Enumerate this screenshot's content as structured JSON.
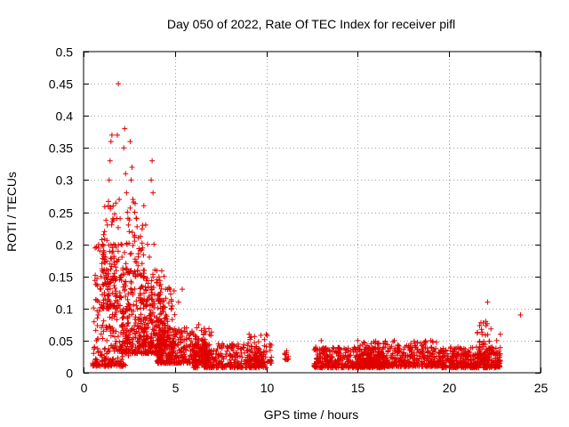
{
  "chart_data": {
    "type": "scatter",
    "title": "Day 050 of 2022, Rate Of TEC Index for receiver pifl",
    "xlabel": "GPS time / hours",
    "ylabel": "ROTI / TECUs",
    "xlim": [
      0,
      25
    ],
    "ylim": [
      0,
      0.5
    ],
    "x_ticks": [
      0,
      5,
      10,
      15,
      20,
      25
    ],
    "x_tick_labels": [
      "0",
      "5",
      "10",
      "15",
      "20",
      "25"
    ],
    "y_ticks": [
      0,
      0.05,
      0.1,
      0.15,
      0.2,
      0.25,
      0.3,
      0.35,
      0.4,
      0.45,
      0.5
    ],
    "y_tick_labels": [
      "0",
      "0.05",
      "0.1",
      "0.15",
      "0.2",
      "0.25",
      "0.3",
      "0.35",
      "0.4",
      "0.45",
      "0.5"
    ],
    "grid": true,
    "marker": "+",
    "color": "#e00000",
    "series": [
      {
        "name": "ROTI",
        "points": [
          [
            0.5,
            0.015
          ],
          [
            0.55,
            0.03
          ],
          [
            0.6,
            0.04
          ],
          [
            0.65,
            0.02
          ],
          [
            0.7,
            0.05
          ],
          [
            0.75,
            0.085
          ],
          [
            0.8,
            0.09
          ],
          [
            0.85,
            0.11
          ],
          [
            0.9,
            0.13
          ],
          [
            0.95,
            0.15
          ],
          [
            1.0,
            0.17
          ],
          [
            1.05,
            0.2
          ],
          [
            1.1,
            0.19
          ],
          [
            1.15,
            0.22
          ],
          [
            1.2,
            0.18
          ],
          [
            1.25,
            0.16
          ],
          [
            1.3,
            0.23
          ],
          [
            1.35,
            0.26
          ],
          [
            1.4,
            0.3
          ],
          [
            1.45,
            0.33
          ],
          [
            1.5,
            0.36
          ],
          [
            1.55,
            0.37
          ],
          [
            1.6,
            0.24
          ],
          [
            1.65,
            0.2
          ],
          [
            1.7,
            0.15
          ],
          [
            1.8,
            0.12
          ],
          [
            1.85,
            0.37
          ],
          [
            1.9,
            0.45
          ],
          [
            1.95,
            0.27
          ],
          [
            2.0,
            0.24
          ],
          [
            2.05,
            0.2
          ],
          [
            2.1,
            0.18
          ],
          [
            2.15,
            0.16
          ],
          [
            2.2,
            0.35
          ],
          [
            2.25,
            0.38
          ],
          [
            2.3,
            0.31
          ],
          [
            2.35,
            0.28
          ],
          [
            2.4,
            0.25
          ],
          [
            2.45,
            0.23
          ],
          [
            2.5,
            0.22
          ],
          [
            2.55,
            0.36
          ],
          [
            2.6,
            0.3
          ],
          [
            2.65,
            0.32
          ],
          [
            2.7,
            0.27
          ],
          [
            2.8,
            0.25
          ],
          [
            2.9,
            0.24
          ],
          [
            3.0,
            0.21
          ],
          [
            3.1,
            0.19
          ],
          [
            3.2,
            0.17
          ],
          [
            3.3,
            0.26
          ],
          [
            3.4,
            0.23
          ],
          [
            3.5,
            0.2
          ],
          [
            3.6,
            0.18
          ],
          [
            3.7,
            0.3
          ],
          [
            3.75,
            0.33
          ],
          [
            3.8,
            0.28
          ],
          [
            3.85,
            0.2
          ],
          [
            3.9,
            0.16
          ],
          [
            4.0,
            0.14
          ],
          [
            4.1,
            0.12
          ],
          [
            4.2,
            0.11
          ],
          [
            4.3,
            0.1
          ],
          [
            4.4,
            0.15
          ],
          [
            4.5,
            0.09
          ],
          [
            4.6,
            0.08
          ],
          [
            4.7,
            0.07
          ],
          [
            4.8,
            0.1
          ],
          [
            5.0,
            0.06
          ],
          [
            5.2,
            0.11
          ],
          [
            5.4,
            0.13
          ],
          [
            5.5,
            0.05
          ],
          [
            5.7,
            0.04
          ],
          [
            6.0,
            0.035
          ],
          [
            6.3,
            0.075
          ],
          [
            6.5,
            0.04
          ],
          [
            7.0,
            0.035
          ],
          [
            7.5,
            0.03
          ],
          [
            8.0,
            0.02
          ],
          [
            8.5,
            0.015
          ],
          [
            9.0,
            0.02
          ],
          [
            9.5,
            0.03
          ],
          [
            10.0,
            0.06
          ],
          [
            10.2,
            0.04
          ],
          [
            11.0,
            0.03
          ],
          [
            11.2,
            0.025
          ],
          [
            12.7,
            0.04
          ],
          [
            13.0,
            0.05
          ],
          [
            13.5,
            0.02
          ],
          [
            14.0,
            0.02
          ],
          [
            14.5,
            0.025
          ],
          [
            15.0,
            0.05
          ],
          [
            15.5,
            0.03
          ],
          [
            16.0,
            0.025
          ],
          [
            16.5,
            0.04
          ],
          [
            17.0,
            0.05
          ],
          [
            17.5,
            0.03
          ],
          [
            18.0,
            0.04
          ],
          [
            18.5,
            0.03
          ],
          [
            19.0,
            0.05
          ],
          [
            19.5,
            0.025
          ],
          [
            20.0,
            0.02
          ],
          [
            20.5,
            0.015
          ],
          [
            21.0,
            0.02
          ],
          [
            21.5,
            0.04
          ],
          [
            21.8,
            0.06
          ],
          [
            22.0,
            0.08
          ],
          [
            22.1,
            0.11
          ],
          [
            22.3,
            0.03
          ],
          [
            22.6,
            0.05
          ],
          [
            22.8,
            0.06
          ],
          [
            23.9,
            0.09
          ]
        ],
        "dense_regions": [
          {
            "x_range": [
              0.5,
              2.5
            ],
            "y_range": [
              0.01,
              0.2
            ],
            "count": 260
          },
          {
            "x_range": [
              1.0,
              2.0
            ],
            "y_range": [
              0.1,
              0.27
            ],
            "count": 90
          },
          {
            "x_range": [
              2.0,
              4.5
            ],
            "y_range": [
              0.03,
              0.16
            ],
            "count": 320
          },
          {
            "x_range": [
              2.3,
              3.3
            ],
            "y_range": [
              0.15,
              0.27
            ],
            "count": 45
          },
          {
            "x_range": [
              3.0,
              5.0
            ],
            "y_range": [
              0.04,
              0.14
            ],
            "count": 180
          },
          {
            "x_range": [
              4.0,
              7.0
            ],
            "y_range": [
              0.015,
              0.07
            ],
            "count": 380
          },
          {
            "x_range": [
              6.0,
              10.0
            ],
            "y_range": [
              0.008,
              0.045
            ],
            "count": 300
          },
          {
            "x_range": [
              9.0,
              10.3
            ],
            "y_range": [
              0.015,
              0.06
            ],
            "count": 60
          },
          {
            "x_range": [
              11.0,
              11.3
            ],
            "y_range": [
              0.02,
              0.035
            ],
            "count": 10
          },
          {
            "x_range": [
              12.6,
              16.5
            ],
            "y_range": [
              0.008,
              0.04
            ],
            "count": 380
          },
          {
            "x_range": [
              15.0,
              19.5
            ],
            "y_range": [
              0.01,
              0.05
            ],
            "count": 480
          },
          {
            "x_range": [
              19.5,
              22.8
            ],
            "y_range": [
              0.008,
              0.04
            ],
            "count": 360
          },
          {
            "x_range": [
              21.5,
              22.3
            ],
            "y_range": [
              0.02,
              0.08
            ],
            "count": 40
          }
        ]
      }
    ]
  }
}
